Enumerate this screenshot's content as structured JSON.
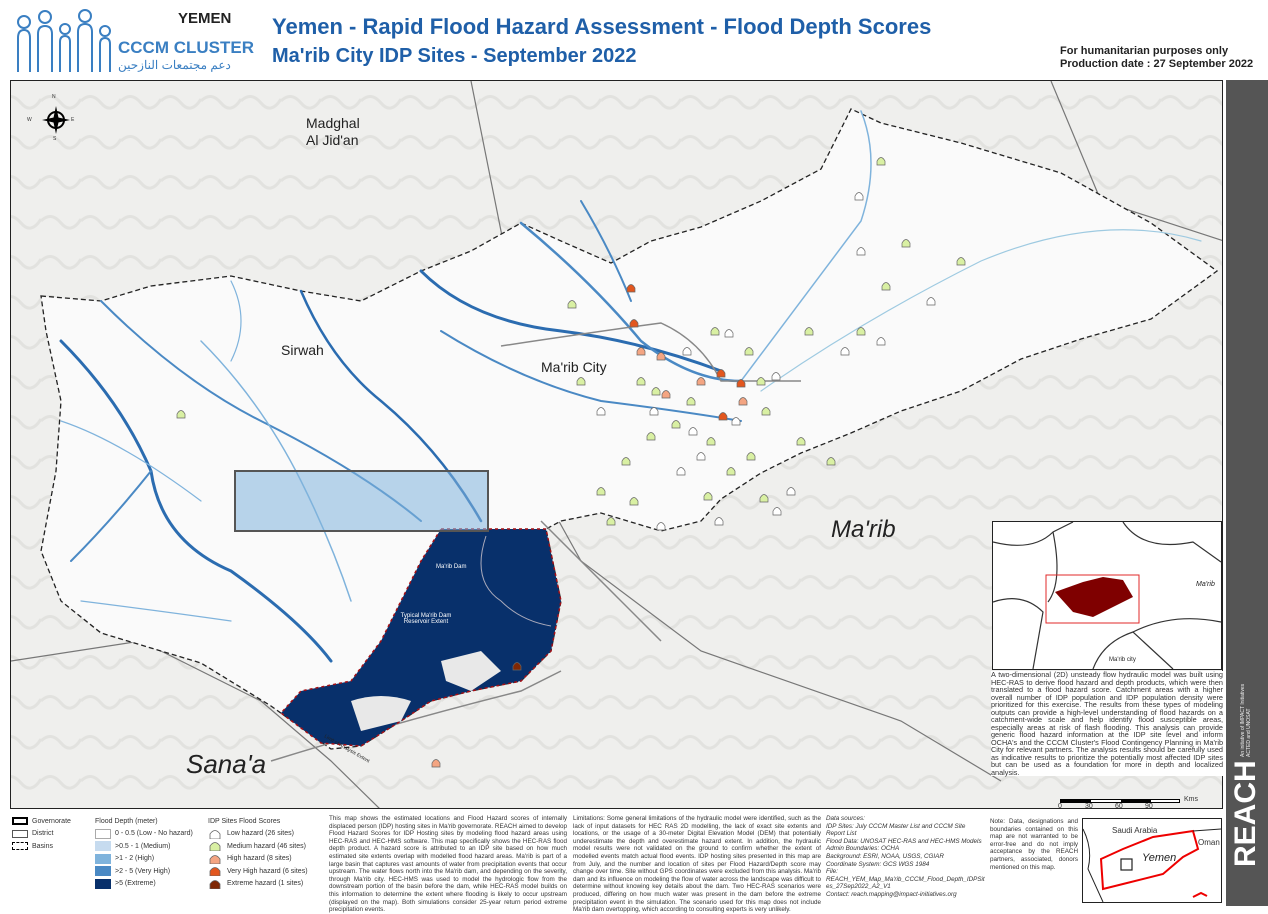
{
  "header": {
    "country": "YEMEN",
    "cluster": "CCCM CLUSTER",
    "cluster_arabic": "دعم مجتمعات النازحين",
    "title": "Yemen - Rapid Flood Hazard Assessment - Flood Depth Scores",
    "subtitle": "Ma'rib City IDP Sites - September 2022",
    "purpose": "For humanitarian purposes only",
    "production_date": "Production date : 27 September 2022"
  },
  "map": {
    "compass": {
      "n": "N",
      "s": "S",
      "e": "E",
      "w": "W"
    },
    "labels": {
      "madghal": "Madghal\nAl Jid'an",
      "sirwah": "Sirwah",
      "marib_city": "Ma'rib City",
      "marib": "Ma'rib",
      "sanaa": "Sana'a",
      "dam": "Ma'rib Dam",
      "reservoir": "Typical Ma'rib Dam Reservoir Extent",
      "limit": "Limit of Analysis Extent"
    },
    "colors": {
      "low": "#ffffff",
      "medium": "#c6dbef",
      "high": "#7fb3dc",
      "very_high": "#4a89c4",
      "extreme": "#08306b",
      "site_low": "#ffffff",
      "site_medium": "#d9f0a3",
      "site_high": "#f4a582",
      "site_very_high": "#e2561e",
      "site_extreme": "#7f2704",
      "reservoir_outline": "#a50f15"
    }
  },
  "inset": {
    "marib": "Ma'rib",
    "city": "Ma'rib city"
  },
  "description": "A two-dimensional (2D) unsteady flow hydraulic model was built using HEC-RAS to derive flood hazard and depth products, which were then translated to a flood hazard score. Catchment areas with a higher overall number of IDP population and IDP population density were prioritized for this exercise. The results from these types of modeling outputs can provide a high-level understanding of flood hazards on a catchment-wide scale and help identify flood susceptible areas, especially areas at risk of flash flooding. This analysis can provide generic flood hazard information at the IDP site level and inform OCHA's and the CCCM Cluster's Flood Contingency Planning in Ma'rib City for relevant partners. The analysis results should be carefully used as indicative results to prioritize the potentially most affected IDP sites but can be used as a foundation for more in depth and localized analysis.",
  "scale": {
    "unit": "Kms",
    "ticks": [
      "0",
      "30",
      "60",
      "90"
    ]
  },
  "legend": {
    "boundaries": [
      "Governorate",
      "District",
      "Basins"
    ],
    "depth_title": "Flood Depth (meter)",
    "depth": [
      "0 - 0.5 (Low - No hazard)",
      ">0.5 - 1 (Medium)",
      ">1 - 2 (High)",
      ">2 - 5 (Very High)",
      ">5 (Extreme)"
    ],
    "sites_title": "IDP Sites Flood Scores",
    "sites": [
      "Low hazard (26 sites)",
      "Medium hazard (46 sites)",
      "High hazard (8 sites)",
      "Very High hazard (6 sites)",
      "Extreme hazard (1 sites)"
    ]
  },
  "text_about": "This map shows the estimated locations and Flood Hazard scores of internally displaced person (IDP) hosting sites in Ma'rib governorate. REACH aimed to develop Flood Hazard Scores for IDP Hosting sites by modeling flood hazard areas using HEC-RAS and HEC-HMS software. This map specifically shows the HEC-RAS flood depth product. A hazard score is attributed to an IDP site based on how much estimated site extents overlap with modelled flood hazard areas. Ma'rib is part of a large basin that captures vast amounts of water from precipitation events that occur upstream. The water flows north into the Ma'rib dam, and depending on the severity, through Ma'rib city. HEC-HMS was used to model the hydrologic flow from the downstream portion of the basin before the dam, while HEC-RAS model builds on this information to determine the extent where flooding is likely to occur upstream (displayed on the map). Both simulations consider 25-year return period extreme precipitation events.",
  "text_limitations": "Limitations: Some general limitations of the hydraulic model were identified, such as the lack of input datasets for HEC RAS 2D modelling, the lack of exact site extents and locations, or the usage of a 30-meter Digital Elevation Model (DEM) that potentially underestimate the depth and overestimate hazard extent. In addition, the hydraulic model results were not validated on the ground to confirm whether the extent of modelled events match actual flood events. IDP hosting sites presented in this map are from July, and the number and location of sites per Flood Hazard/Depth score may change over time. Site without GPS coordinates were excluded from this analysis. Ma'rib dam and its influence on modeling the flow of water across the landscape was difficult to determine without knowing key details about the dam. Two HEC-RAS scenarios were produced, differing on how much water was present in the dam before the extreme precipitation event in the simulation. The scenario used for this map does not include Ma'rib dam overtopping, which according to consulting experts is very unlikely.",
  "sources": [
    "Data sources:",
    "IDP Sites: July CCCM Master List and CCCM Site Report List",
    "Flood Data: UNOSAT HEC-RAS and HEC-HMS Models",
    "Admin Boundaries: OCHA",
    "Background: ESRI, NOAA, USGS, CGIAR",
    "Coordinate System: GCS WGS 1984",
    "File: REACH_YEM_Map_Ma'rib_CCCM_Flood_Depth_IDPSites_27Sep2022_A2_V1",
    "Contact: reach.mapping@impact-initiatives.org"
  ],
  "disclaimer": "Note: Data, designations and boundaries contained on this map are not warranted to be error-free and do not imply acceptance by the REACH partners, associated, donors mentioned on this map.",
  "locator": {
    "saudi": "Saudi Arabia",
    "oman": "Oman",
    "yemen": "Yemen"
  },
  "brand": {
    "name": "REACH",
    "tagline": "An initiative of IMPACT Initiatives ACTED and UNOSAT"
  }
}
